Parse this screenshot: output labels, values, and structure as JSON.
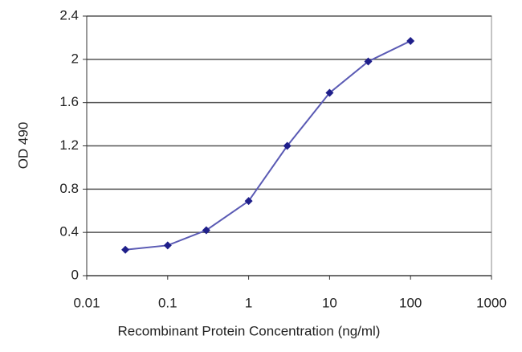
{
  "chart_data": {
    "type": "line",
    "x_label": "Recombinant Protein Concentration (ng/ml)",
    "y_label": "OD 490",
    "x": [
      0.03,
      0.1,
      0.3,
      1,
      3,
      10,
      30,
      100
    ],
    "series": [
      {
        "color": "#5a5ab4",
        "marker_color": "#1f1f8a",
        "values": [
          0.24,
          0.28,
          0.42,
          0.69,
          1.2,
          1.69,
          1.98,
          2.17
        ]
      }
    ],
    "xscale": "log",
    "xlim": [
      0.01,
      1000
    ],
    "xticks": [
      0.01,
      0.1,
      1,
      10,
      100,
      1000
    ],
    "ylim": [
      0,
      2.4
    ],
    "yticks": [
      0,
      0.4,
      0.8,
      1.2,
      1.6,
      2,
      2.4
    ],
    "grid": true
  }
}
